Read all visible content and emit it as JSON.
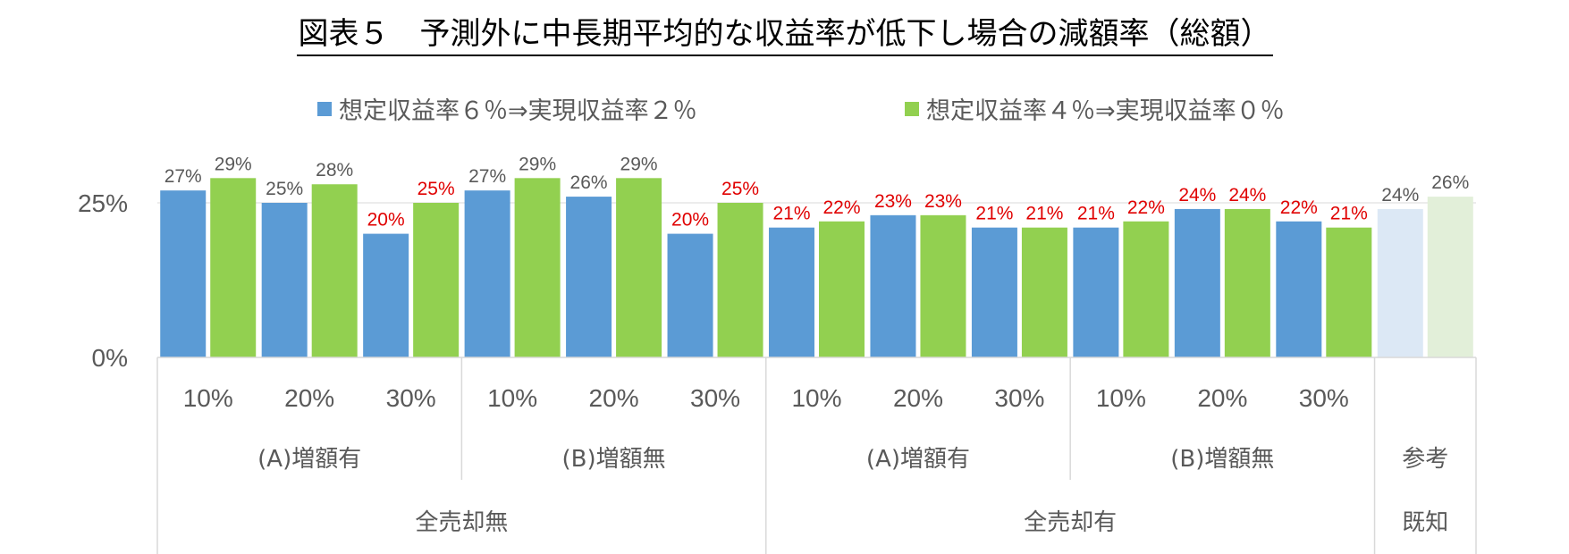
{
  "chart_data": {
    "type": "bar",
    "title": "図表５　予測外に中長期平均的な収益率が低下し場合の減額率（総額）",
    "legend_position": "top",
    "y_ticks": [
      "0%",
      "25%"
    ],
    "ylim": [
      0,
      30
    ],
    "categories": [
      "10%",
      "20%",
      "30%",
      "10%",
      "20%",
      "30%",
      "10%",
      "20%",
      "30%",
      "10%",
      "20%",
      "30%",
      ""
    ],
    "group_labels_level2": [
      {
        "label": "(A)増額有",
        "span": [
          0,
          2
        ]
      },
      {
        "label": "(B)増額無",
        "span": [
          3,
          5
        ]
      },
      {
        "label": "(A)増額有",
        "span": [
          6,
          8
        ]
      },
      {
        "label": "(B)増額無",
        "span": [
          9,
          11
        ]
      },
      {
        "label": "参考",
        "span": [
          12,
          12
        ]
      }
    ],
    "group_labels_level3": [
      {
        "label": "全売却無",
        "span": [
          0,
          5
        ]
      },
      {
        "label": "全売却有",
        "span": [
          6,
          11
        ]
      },
      {
        "label": "既知",
        "span": [
          12,
          12
        ]
      }
    ],
    "series": [
      {
        "name": "想定収益率６％⇒実現収益率２％",
        "color": "#5b9bd5",
        "reference_color": "#dce8f5",
        "values": [
          27,
          25,
          20,
          27,
          26,
          20,
          21,
          23,
          21,
          21,
          24,
          22,
          24
        ],
        "value_labels": [
          "27%",
          "25%",
          "20%",
          "27%",
          "26%",
          "20%",
          "21%",
          "23%",
          "21%",
          "21%",
          "24%",
          "22%",
          "24%"
        ],
        "label_colors": [
          "#595959",
          "#595959",
          "#e00000",
          "#595959",
          "#595959",
          "#e00000",
          "#e00000",
          "#e00000",
          "#e00000",
          "#e00000",
          "#e00000",
          "#e00000",
          "#595959"
        ]
      },
      {
        "name": "想定収益率４％⇒実現収益率０％",
        "color": "#92d050",
        "reference_color": "#e2efd9",
        "values": [
          29,
          28,
          25,
          29,
          29,
          25,
          22,
          23,
          21,
          22,
          24,
          21,
          26
        ],
        "value_labels": [
          "29%",
          "28%",
          "25%",
          "29%",
          "29%",
          "25%",
          "22%",
          "23%",
          "21%",
          "22%",
          "24%",
          "21%",
          "26%"
        ],
        "label_colors": [
          "#595959",
          "#595959",
          "#e00000",
          "#595959",
          "#595959",
          "#e00000",
          "#e00000",
          "#e00000",
          "#e00000",
          "#e00000",
          "#e00000",
          "#e00000",
          "#595959"
        ]
      }
    ]
  }
}
